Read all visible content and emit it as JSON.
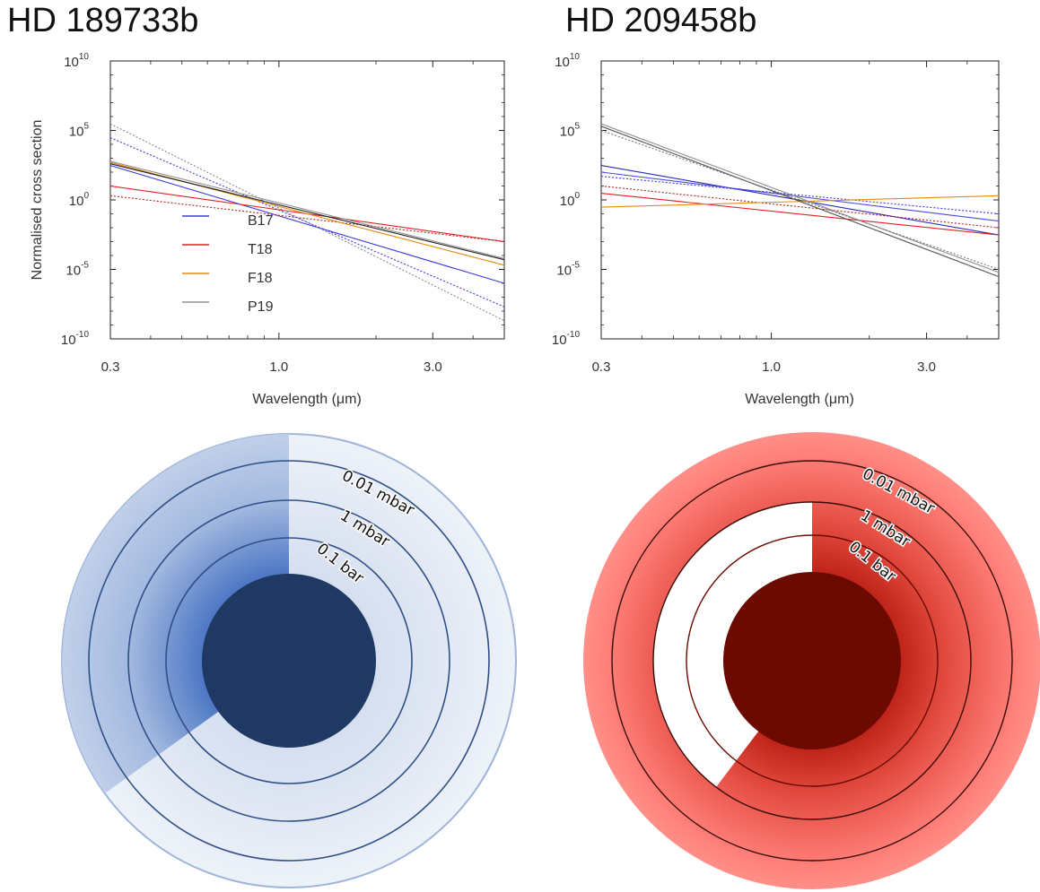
{
  "chart_data": [
    {
      "type": "line",
      "title": "HD 189733b",
      "xlabel": "Wavelength (μm)",
      "ylabel": "Normalised cross section",
      "xscale": "log",
      "yscale": "log",
      "xlim": [
        0.3,
        5.0
      ],
      "ylim": [
        1e-10,
        10000000000.0
      ],
      "xticks": [
        {
          "v": 0.3,
          "label": "0.3"
        },
        {
          "v": 1.0,
          "label": "1.0"
        },
        {
          "v": 3.0,
          "label": "3.0"
        }
      ],
      "yticks": [
        {
          "v": 1e-10,
          "base": "10",
          "exp": "-10"
        },
        {
          "v": 1e-05,
          "base": "10",
          "exp": "-5"
        },
        {
          "v": 1,
          "base": "10",
          "exp": "0"
        },
        {
          "v": 100000.0,
          "base": "10",
          "exp": "5"
        },
        {
          "v": 10000000000.0,
          "base": "10",
          "exp": "10"
        }
      ],
      "legend": {
        "position": "lower-left",
        "entries": [
          "B17",
          "T18",
          "F18",
          "P19"
        ]
      },
      "series": [
        {
          "name": "B17",
          "color": "#3b3bdb",
          "dash": "solid",
          "x": [
            0.3,
            5.0
          ],
          "y": [
            300.0,
            1e-06
          ]
        },
        {
          "name": "B17",
          "color": "#3b3bdb",
          "dash": "dotted",
          "x": [
            0.3,
            5.0
          ],
          "y": [
            30000.0,
            2e-08
          ]
        },
        {
          "name": "T18",
          "color": "#e02020",
          "dash": "solid",
          "x": [
            0.3,
            5.0
          ],
          "y": [
            10.0,
            0.001
          ]
        },
        {
          "name": "T18",
          "color": "#b02020",
          "dash": "dotted",
          "x": [
            0.3,
            5.0
          ],
          "y": [
            2,
            0.001
          ]
        },
        {
          "name": "F18",
          "color": "#e08a10",
          "dash": "solid",
          "x": [
            0.3,
            5.0
          ],
          "y": [
            500.0,
            2e-05
          ]
        },
        {
          "name": "P19",
          "color": "#909090",
          "dash": "solid",
          "x": [
            0.3,
            5.0
          ],
          "y": [
            600.0,
            6e-05
          ]
        },
        {
          "name": "P19",
          "color": "#222222",
          "dash": "solid",
          "x": [
            0.3,
            5.0
          ],
          "y": [
            400.0,
            5e-05
          ]
        },
        {
          "name": "P19",
          "color": "#8a8a8a",
          "dash": "dotted",
          "x": [
            0.3,
            5.0
          ],
          "y": [
            300000.0,
            2e-09
          ]
        }
      ]
    },
    {
      "type": "line",
      "title": "HD 209458b",
      "xlabel": "Wavelength (μm)",
      "ylabel": "",
      "xscale": "log",
      "yscale": "log",
      "xlim": [
        0.3,
        5.0
      ],
      "ylim": [
        1e-10,
        10000000000.0
      ],
      "xticks": [
        {
          "v": 0.3,
          "label": "0.3"
        },
        {
          "v": 1.0,
          "label": "1.0"
        },
        {
          "v": 3.0,
          "label": "3.0"
        }
      ],
      "yticks": [
        {
          "v": 1e-10,
          "base": "10",
          "exp": "-10"
        },
        {
          "v": 1e-05,
          "base": "10",
          "exp": "-5"
        },
        {
          "v": 1,
          "base": "10",
          "exp": "0"
        },
        {
          "v": 100000.0,
          "base": "10",
          "exp": "5"
        },
        {
          "v": 10000000000.0,
          "base": "10",
          "exp": "10"
        }
      ],
      "series": [
        {
          "name": "B17",
          "color": "#2a2ab8",
          "dash": "solid",
          "x": [
            0.3,
            5.0
          ],
          "y": [
            300.0,
            0.003
          ]
        },
        {
          "name": "B17",
          "color": "#4a4ae0",
          "dash": "solid",
          "x": [
            0.3,
            5.0
          ],
          "y": [
            100.0,
            0.03
          ]
        },
        {
          "name": "B17",
          "color": "#3b3bdb",
          "dash": "dotted",
          "x": [
            0.3,
            5.0
          ],
          "y": [
            50.0,
            0.1
          ]
        },
        {
          "name": "T18",
          "color": "#e02020",
          "dash": "solid",
          "x": [
            0.3,
            5.0
          ],
          "y": [
            3,
            0.003
          ]
        },
        {
          "name": "T18",
          "color": "#b02020",
          "dash": "dotted",
          "x": [
            0.3,
            5.0
          ],
          "y": [
            10,
            0.01
          ]
        },
        {
          "name": "F18",
          "color": "#e08a10",
          "dash": "solid",
          "x": [
            0.3,
            5.0
          ],
          "y": [
            0.3,
            2
          ]
        },
        {
          "name": "P19",
          "color": "#555555",
          "dash": "solid",
          "x": [
            0.3,
            5.0
          ],
          "y": [
            200000.0,
            3e-06
          ]
        },
        {
          "name": "P19",
          "color": "#8a8a8a",
          "dash": "solid",
          "x": [
            0.3,
            5.0
          ],
          "y": [
            300000.0,
            6e-06
          ]
        },
        {
          "name": "P19",
          "color": "#777777",
          "dash": "dotted",
          "x": [
            0.3,
            5.0
          ],
          "y": [
            100000.0,
            1e-05
          ]
        }
      ]
    }
  ],
  "diagrams": {
    "left": {
      "planet_color": "#1f3864",
      "atmosphere_color": "#4a78c8",
      "light_color": "#e8eef8",
      "ring_color": "#2f4f86",
      "labels": [
        "0.01 mbar",
        "1 mbar",
        "0.1 bar"
      ]
    },
    "right": {
      "planet_color": "#6b0a00",
      "atmosphere_color": "#ff7a73",
      "ring_color": "#3a0c08",
      "labels": [
        "0.01 mbar",
        "1 mbar",
        "0.1 bar"
      ]
    }
  }
}
